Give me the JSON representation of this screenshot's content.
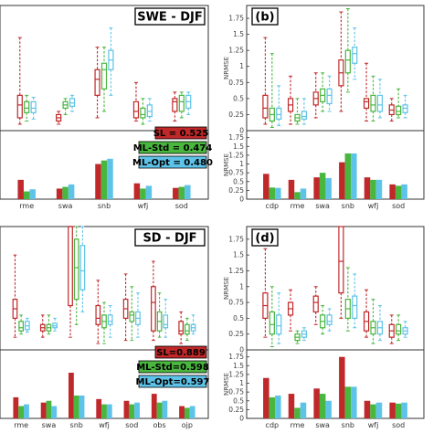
{
  "colors": {
    "SL": "#c0282a",
    "ML-Std": "#49b63e",
    "ML-Opt": "#5ec3e8"
  },
  "chart_data": [
    {
      "panel": "a",
      "type": "box+bar",
      "title": "SWE - DJF",
      "panel_label": "",
      "ylabel": "",
      "yticks": [
        "0",
        "0.25",
        "0.5",
        "0.75",
        "1",
        "1.25",
        "1.5",
        "1.75"
      ],
      "ylim": [
        0,
        1.95
      ],
      "categories": [
        "rme",
        "swa",
        "snb",
        "wfj",
        "sod"
      ],
      "series_names": [
        "SL",
        "ML-Std",
        "ML-Opt"
      ],
      "boxes": [
        [
          [
            0.1,
            0.2,
            0.4,
            0.55,
            1.45
          ],
          [
            0.15,
            0.28,
            0.35,
            0.45,
            0.55
          ],
          [
            0.18,
            0.28,
            0.35,
            0.45,
            0.52
          ]
        ],
        [
          [
            0.1,
            0.15,
            0.2,
            0.25,
            0.3
          ],
          [
            0.25,
            0.35,
            0.4,
            0.45,
            0.5
          ],
          [
            0.3,
            0.38,
            0.43,
            0.5,
            0.55
          ]
        ],
        [
          [
            0.2,
            0.55,
            0.8,
            0.95,
            1.3
          ],
          [
            0.3,
            0.65,
            0.95,
            1.05,
            1.3
          ],
          [
            0.55,
            0.95,
            1.1,
            1.25,
            1.6
          ]
        ],
        [
          [
            0.15,
            0.2,
            0.3,
            0.45,
            0.75
          ],
          [
            0.1,
            0.2,
            0.25,
            0.35,
            0.5
          ],
          [
            0.15,
            0.22,
            0.3,
            0.4,
            0.5
          ]
        ],
        [
          [
            0.15,
            0.3,
            0.45,
            0.5,
            0.6
          ],
          [
            0.2,
            0.3,
            0.45,
            0.55,
            0.6
          ],
          [
            0.25,
            0.35,
            0.45,
            0.55,
            0.6
          ]
        ]
      ],
      "bar_values": [
        [
          0.55,
          0.22,
          0.28
        ],
        [
          0.3,
          0.35,
          0.42
        ],
        [
          1.0,
          1.1,
          1.15
        ],
        [
          0.45,
          0.3,
          0.38
        ],
        [
          0.32,
          0.35,
          0.4
        ]
      ],
      "legend": [
        {
          "series": "SL",
          "text": "SL = 0.525"
        },
        {
          "series": "ML-Std",
          "text": "ML-Std = 0.474"
        },
        {
          "series": "ML-Opt",
          "text": "ML-Opt = 0.480"
        }
      ]
    },
    {
      "panel": "b",
      "type": "box+bar",
      "title": "",
      "panel_label": "(b)",
      "ylabel": "NRMSE",
      "yticks": [
        "0",
        "0.25",
        "0.5",
        "0.75",
        "1",
        "1.25",
        "1.5",
        "1.75"
      ],
      "ylim": [
        0,
        1.95
      ],
      "categories": [
        "cdp",
        "rme",
        "swa",
        "snb",
        "wfj",
        "sod"
      ],
      "series_names": [
        "SL",
        "ML-Std",
        "ML-Opt"
      ],
      "boxes": [
        [
          [
            0.1,
            0.2,
            0.35,
            0.55,
            1.45
          ],
          [
            0.05,
            0.15,
            0.25,
            0.35,
            1.2
          ],
          [
            0.08,
            0.18,
            0.25,
            0.35,
            0.7
          ]
        ],
        [
          [
            0.1,
            0.3,
            0.4,
            0.5,
            0.85
          ],
          [
            0.1,
            0.15,
            0.2,
            0.25,
            0.5
          ],
          [
            0.1,
            0.18,
            0.22,
            0.3,
            0.5
          ]
        ],
        [
          [
            0.2,
            0.4,
            0.5,
            0.6,
            0.9
          ],
          [
            0.3,
            0.45,
            0.55,
            0.65,
            0.9
          ],
          [
            0.3,
            0.42,
            0.55,
            0.65,
            0.85
          ]
        ],
        [
          [
            0.3,
            0.7,
            0.9,
            1.1,
            1.85
          ],
          [
            0.6,
            0.9,
            1.1,
            1.25,
            1.9
          ],
          [
            0.8,
            1.05,
            1.2,
            1.3,
            1.6
          ]
        ],
        [
          [
            0.15,
            0.35,
            0.45,
            0.5,
            1.05
          ],
          [
            0.15,
            0.3,
            0.4,
            0.55,
            0.85
          ],
          [
            0.2,
            0.3,
            0.4,
            0.55,
            0.8
          ]
        ],
        [
          [
            0.15,
            0.25,
            0.32,
            0.4,
            0.5
          ],
          [
            0.2,
            0.25,
            0.3,
            0.38,
            0.65
          ],
          [
            0.2,
            0.28,
            0.35,
            0.4,
            0.55
          ]
        ]
      ],
      "bar_values": [
        [
          0.72,
          0.33,
          0.32
        ],
        [
          0.55,
          0.2,
          0.3
        ],
        [
          0.62,
          0.75,
          0.6
        ],
        [
          1.05,
          1.3,
          1.3
        ],
        [
          0.62,
          0.55,
          0.55
        ],
        [
          0.42,
          0.38,
          0.42
        ]
      ],
      "legend": []
    },
    {
      "panel": "c",
      "type": "box+bar",
      "title": "SD - DJF",
      "panel_label": "",
      "ylabel": "",
      "yticks": [
        "0",
        "0.25",
        "0.5",
        "0.75",
        "1",
        "1.25",
        "1.5",
        "1.75"
      ],
      "ylim": [
        0,
        1.95
      ],
      "categories": [
        "rme",
        "swa",
        "snb",
        "wfj",
        "sod",
        "obs",
        "ojp"
      ],
      "series_names": [
        "SL",
        "ML-Std",
        "ML-Opt"
      ],
      "boxes": [
        [
          [
            0.2,
            0.5,
            0.65,
            0.8,
            1.5
          ],
          [
            0.25,
            0.3,
            0.35,
            0.45,
            0.55
          ],
          [
            0.28,
            0.32,
            0.38,
            0.45,
            0.5
          ]
        ],
        [
          [
            0.2,
            0.3,
            0.35,
            0.4,
            0.55
          ],
          [
            0.25,
            0.3,
            0.35,
            0.4,
            0.55
          ],
          [
            0.3,
            0.35,
            0.38,
            0.42,
            0.5
          ]
        ],
        [
          [
            0.2,
            0.7,
            1.95,
            1.95,
            1.95
          ],
          [
            0.4,
            0.8,
            1.3,
            1.75,
            1.95
          ],
          [
            0.6,
            0.95,
            1.25,
            1.65,
            1.95
          ]
        ],
        [
          [
            0.1,
            0.4,
            0.5,
            0.7,
            1.1
          ],
          [
            0.1,
            0.35,
            0.45,
            0.55,
            0.75
          ],
          [
            0.2,
            0.4,
            0.45,
            0.55,
            0.7
          ]
        ],
        [
          [
            0.15,
            0.5,
            0.65,
            0.8,
            1.2
          ],
          [
            0.15,
            0.45,
            0.55,
            0.6,
            1.0
          ],
          [
            0.2,
            0.4,
            0.5,
            0.6,
            0.9
          ]
        ],
        [
          [
            0.15,
            0.3,
            0.75,
            1.0,
            1.4
          ],
          [
            0.2,
            0.3,
            0.45,
            0.6,
            0.9
          ],
          [
            0.2,
            0.35,
            0.4,
            0.55,
            0.8
          ]
        ],
        [
          [
            0.1,
            0.25,
            0.3,
            0.45,
            0.6
          ],
          [
            0.15,
            0.25,
            0.3,
            0.4,
            0.5
          ],
          [
            0.25,
            0.3,
            0.35,
            0.4,
            0.55
          ]
        ]
      ],
      "bar_values": [
        [
          0.6,
          0.35,
          0.4
        ],
        [
          0.45,
          0.5,
          0.35
        ],
        [
          1.3,
          0.65,
          0.65
        ],
        [
          0.55,
          0.4,
          0.4
        ],
        [
          0.5,
          0.4,
          0.45
        ],
        [
          0.7,
          0.45,
          0.5
        ],
        [
          0.35,
          0.3,
          0.35
        ]
      ],
      "legend": [
        {
          "series": "SL",
          "text": "SL=0.889"
        },
        {
          "series": "ML-Std",
          "text": "ML-Std=0.598"
        },
        {
          "series": "ML-Opt",
          "text": "ML-Opt=0.597"
        }
      ]
    },
    {
      "panel": "d",
      "type": "box+bar",
      "title": "",
      "panel_label": "(d)",
      "ylabel": "NRMSE",
      "yticks": [
        "0",
        "0.25",
        "0.5",
        "0.75",
        "1",
        "1.25",
        "1.5",
        "1.75"
      ],
      "ylim": [
        0,
        1.95
      ],
      "categories": [
        "cdp",
        "rme",
        "swa",
        "snb",
        "wfj",
        "sod"
      ],
      "series_names": [
        "SL",
        "ML-Std",
        "ML-Opt"
      ],
      "boxes": [
        [
          [
            0.2,
            0.5,
            0.7,
            0.9,
            1.6
          ],
          [
            0.05,
            0.25,
            0.4,
            0.6,
            1.0
          ],
          [
            0.1,
            0.25,
            0.38,
            0.55,
            0.9
          ]
        ],
        [
          [
            0.3,
            0.55,
            0.65,
            0.75,
            0.95
          ],
          [
            0.1,
            0.15,
            0.2,
            0.25,
            0.3
          ],
          [
            0.15,
            0.2,
            0.25,
            0.3,
            0.35
          ]
        ],
        [
          [
            0.4,
            0.6,
            0.75,
            0.85,
            1.0
          ],
          [
            0.25,
            0.35,
            0.45,
            0.55,
            0.7
          ],
          [
            0.3,
            0.4,
            0.45,
            0.55,
            0.65
          ]
        ],
        [
          [
            0.5,
            0.9,
            1.4,
            1.95,
            1.95
          ],
          [
            0.3,
            0.5,
            0.65,
            0.8,
            1.3
          ],
          [
            0.35,
            0.5,
            0.7,
            0.85,
            1.2
          ]
        ],
        [
          [
            0.2,
            0.3,
            0.45,
            0.6,
            0.95
          ],
          [
            0.1,
            0.25,
            0.35,
            0.45,
            0.8
          ],
          [
            0.15,
            0.25,
            0.35,
            0.45,
            0.7
          ]
        ],
        [
          [
            0.1,
            0.2,
            0.3,
            0.4,
            0.55
          ],
          [
            0.15,
            0.25,
            0.3,
            0.4,
            0.55
          ],
          [
            0.2,
            0.25,
            0.3,
            0.35,
            0.45
          ]
        ]
      ],
      "bar_values": [
        [
          1.15,
          0.6,
          0.65
        ],
        [
          0.7,
          0.3,
          0.45
        ],
        [
          0.85,
          0.7,
          0.5
        ],
        [
          1.75,
          0.9,
          0.9
        ],
        [
          0.5,
          0.4,
          0.45
        ],
        [
          0.45,
          0.42,
          0.45
        ]
      ],
      "legend": []
    }
  ]
}
